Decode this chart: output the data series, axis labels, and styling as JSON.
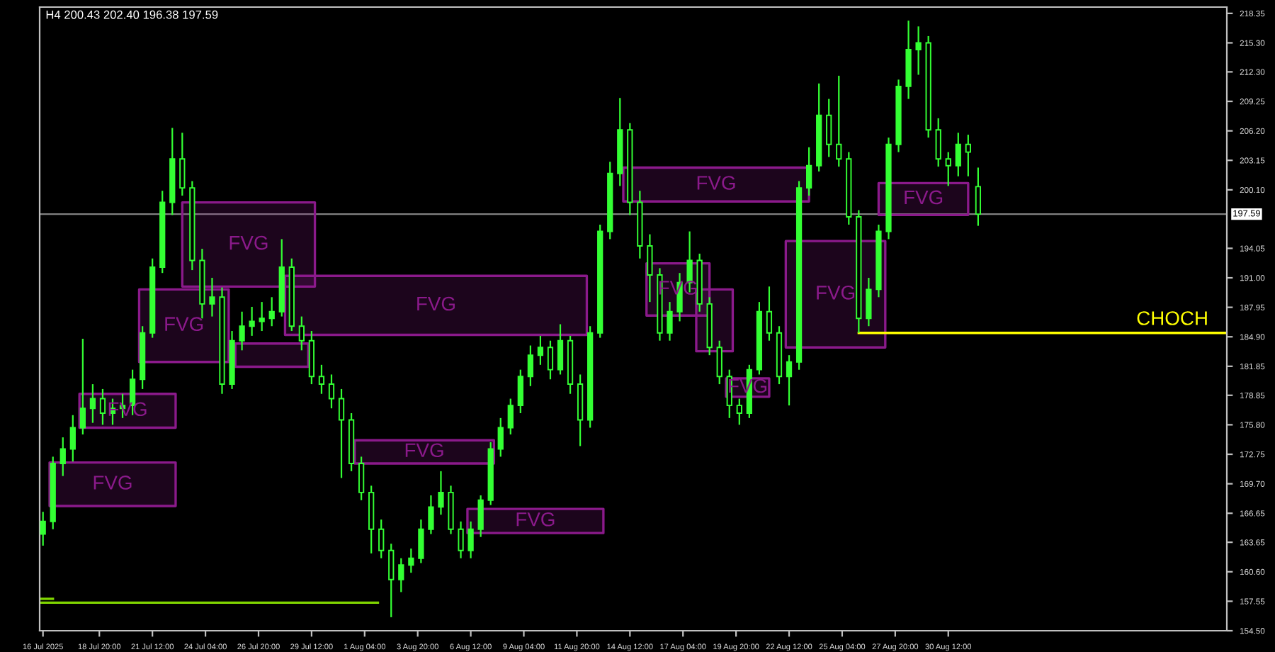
{
  "chart_data": {
    "type": "candlestick",
    "title": "H4 200.43 202.40 196.38 197.59",
    "xlim": [
      "2025-07-15T20:00",
      "2025-09-13T12:00"
    ],
    "xticks": [
      {
        "value": "2025-07-16T00:00",
        "label": "16 Jul 2025"
      },
      {
        "value": "2025-07-18T20:00",
        "label": "18 Jul 20:00"
      },
      {
        "value": "2025-07-21T12:00",
        "label": "21 Jul 12:00"
      },
      {
        "value": "2025-07-24T04:00",
        "label": "24 Jul 04:00"
      },
      {
        "value": "2025-07-26T20:00",
        "label": "26 Jul 20:00"
      },
      {
        "value": "2025-07-29T12:00",
        "label": "29 Jul 12:00"
      },
      {
        "value": "2025-08-01T04:00",
        "label": "1 Aug 04:00"
      },
      {
        "value": "2025-08-03T20:00",
        "label": "3 Aug 20:00"
      },
      {
        "value": "2025-08-06T12:00",
        "label": "6 Aug 12:00"
      },
      {
        "value": "2025-08-09T04:00",
        "label": "9 Aug 04:00"
      },
      {
        "value": "2025-08-11T20:00",
        "label": "11 Aug 20:00"
      },
      {
        "value": "2025-08-14T12:00",
        "label": "14 Aug 12:00"
      },
      {
        "value": "2025-08-17T04:00",
        "label": "17 Aug 04:00"
      },
      {
        "value": "2025-08-19T20:00",
        "label": "19 Aug 20:00"
      },
      {
        "value": "2025-08-22T12:00",
        "label": "22 Aug 12:00"
      },
      {
        "value": "2025-08-25T04:00",
        "label": "25 Aug 04:00"
      },
      {
        "value": "2025-08-27T20:00",
        "label": "27 Aug 20:00"
      },
      {
        "value": "2025-08-30T12:00",
        "label": "30 Aug 12:00"
      }
    ],
    "ylim": [
      154.5,
      219.0
    ],
    "yticks": [
      {
        "value": 154.5,
        "label": "154.50"
      },
      157.55,
      {
        "value": 160.6,
        "label": "160.60"
      },
      163.65,
      166.65,
      {
        "value": 169.7,
        "label": "169.70"
      },
      172.75,
      {
        "value": 175.8,
        "label": "175.80"
      },
      178.85,
      181.85,
      {
        "value": 184.9,
        "label": "184.90"
      },
      187.95,
      {
        "value": 191.0,
        "label": "191.00"
      },
      194.05,
      {
        "value": 200.1,
        "label": "200.10"
      },
      203.15,
      {
        "value": 206.2,
        "label": "206.20"
      },
      209.25,
      {
        "value": 212.3,
        "label": "212.30"
      },
      {
        "value": 215.3,
        "label": "215.30"
      },
      218.35
    ],
    "grid": false,
    "ref_lines": [
      {
        "axis": "y",
        "value": 197.59,
        "label": "197.59",
        "color": "#808080"
      }
    ],
    "series": [
      {
        "type": "candlestick",
        "color": "#33ff33",
        "x": [
          "2025-07-16T00:00",
          "2025-07-16T12:00",
          "2025-07-17T00:00",
          "2025-07-17T12:00",
          "2025-07-18T00:00",
          "2025-07-18T12:00",
          "2025-07-19T00:00",
          "2025-07-19T12:00",
          "2025-07-20T00:00",
          "2025-07-20T12:00",
          "2025-07-21T00:00",
          "2025-07-21T12:00",
          "2025-07-22T00:00",
          "2025-07-22T12:00",
          "2025-07-23T00:00",
          "2025-07-23T12:00",
          "2025-07-24T00:00",
          "2025-07-24T12:00",
          "2025-07-25T00:00",
          "2025-07-25T12:00",
          "2025-07-26T00:00",
          "2025-07-26T12:00",
          "2025-07-27T00:00",
          "2025-07-27T12:00",
          "2025-07-28T00:00",
          "2025-07-28T12:00",
          "2025-07-29T00:00",
          "2025-07-29T12:00",
          "2025-07-30T00:00",
          "2025-07-30T12:00",
          "2025-07-31T00:00",
          "2025-07-31T12:00",
          "2025-08-01T00:00",
          "2025-08-01T12:00",
          "2025-08-02T00:00",
          "2025-08-02T12:00",
          "2025-08-03T00:00",
          "2025-08-03T12:00",
          "2025-08-04T00:00",
          "2025-08-04T12:00",
          "2025-08-05T00:00",
          "2025-08-05T12:00",
          "2025-08-06T00:00",
          "2025-08-06T12:00",
          "2025-08-07T00:00",
          "2025-08-07T12:00",
          "2025-08-08T00:00",
          "2025-08-08T12:00",
          "2025-08-09T00:00",
          "2025-08-09T12:00",
          "2025-08-10T00:00",
          "2025-08-10T12:00",
          "2025-08-11T00:00",
          "2025-08-11T12:00",
          "2025-08-12T00:00",
          "2025-08-12T12:00",
          "2025-08-13T00:00",
          "2025-08-13T12:00",
          "2025-08-14T00:00",
          "2025-08-14T12:00",
          "2025-08-15T00:00",
          "2025-08-15T12:00",
          "2025-08-16T00:00",
          "2025-08-16T12:00",
          "2025-08-17T00:00",
          "2025-08-17T12:00",
          "2025-08-18T00:00",
          "2025-08-18T12:00",
          "2025-08-19T00:00",
          "2025-08-19T12:00",
          "2025-08-20T00:00",
          "2025-08-20T12:00",
          "2025-08-21T00:00",
          "2025-08-21T12:00",
          "2025-08-22T00:00",
          "2025-08-22T12:00",
          "2025-08-23T00:00",
          "2025-08-23T12:00",
          "2025-08-24T00:00",
          "2025-08-24T12:00",
          "2025-08-25T00:00",
          "2025-08-25T12:00",
          "2025-08-26T00:00",
          "2025-08-26T12:00",
          "2025-08-27T00:00",
          "2025-08-27T12:00",
          "2025-08-28T00:00",
          "2025-08-28T12:00",
          "2025-08-29T00:00",
          "2025-08-29T12:00",
          "2025-08-30T00:00",
          "2025-08-30T12:00",
          "2025-08-31T00:00",
          "2025-08-31T12:00",
          "2025-09-01T00:00"
        ],
        "ohlc": [
          [
            164.5,
            166.8,
            163.3,
            165.8
          ],
          [
            165.8,
            172.5,
            165.0,
            171.8
          ],
          [
            171.8,
            174.5,
            170.5,
            173.3
          ],
          [
            173.3,
            176.8,
            172.0,
            175.5
          ],
          [
            175.5,
            184.7,
            174.8,
            177.5
          ],
          [
            177.5,
            180.0,
            176.0,
            178.5
          ],
          [
            178.5,
            179.5,
            175.8,
            177.0
          ],
          [
            177.0,
            178.5,
            175.8,
            177.5
          ],
          [
            177.5,
            179.0,
            176.5,
            177.8
          ],
          [
            177.8,
            181.5,
            176.8,
            180.5
          ],
          [
            180.5,
            186.0,
            179.5,
            185.3
          ],
          [
            185.3,
            193.0,
            184.8,
            192.1
          ],
          [
            192.1,
            200.0,
            191.5,
            198.8
          ],
          [
            198.8,
            206.5,
            197.5,
            203.3
          ],
          [
            203.3,
            206.0,
            199.5,
            200.3
          ],
          [
            200.3,
            201.0,
            191.8,
            192.8
          ],
          [
            192.8,
            194.0,
            186.8,
            188.3
          ],
          [
            188.3,
            191.0,
            187.0,
            189.0
          ],
          [
            189.0,
            190.0,
            179.0,
            180.0
          ],
          [
            180.0,
            185.5,
            179.5,
            184.5
          ],
          [
            184.5,
            187.5,
            183.5,
            186.0
          ],
          [
            186.0,
            188.0,
            185.0,
            186.5
          ],
          [
            186.5,
            188.5,
            185.5,
            186.8
          ],
          [
            186.8,
            189.0,
            186.0,
            187.5
          ],
          [
            187.5,
            195.0,
            187.0,
            192.1
          ],
          [
            192.1,
            193.0,
            185.5,
            186.0
          ],
          [
            186.0,
            187.0,
            183.5,
            184.5
          ],
          [
            184.5,
            185.5,
            180.0,
            180.8
          ],
          [
            180.8,
            182.0,
            179.0,
            180.0
          ],
          [
            180.0,
            181.0,
            177.5,
            178.5
          ],
          [
            178.5,
            179.5,
            170.3,
            176.3
          ],
          [
            176.3,
            177.0,
            171.0,
            171.8
          ],
          [
            171.8,
            172.5,
            168.0,
            168.8
          ],
          [
            168.8,
            169.5,
            162.5,
            165.0
          ],
          [
            165.0,
            166.0,
            162.0,
            162.8
          ],
          [
            162.8,
            163.5,
            155.9,
            159.8
          ],
          [
            159.8,
            162.0,
            158.5,
            161.3
          ],
          [
            161.3,
            163.0,
            160.5,
            162.0
          ],
          [
            162.0,
            166.0,
            161.5,
            165.0
          ],
          [
            165.0,
            168.5,
            164.5,
            167.3
          ],
          [
            167.3,
            171.0,
            166.5,
            168.8
          ],
          [
            168.8,
            169.5,
            164.5,
            165.0
          ],
          [
            165.0,
            165.8,
            162.0,
            162.8
          ],
          [
            162.8,
            165.8,
            162.0,
            165.0
          ],
          [
            165.0,
            168.5,
            164.2,
            168.0
          ],
          [
            168.0,
            174.0,
            167.5,
            173.3
          ],
          [
            173.3,
            176.5,
            172.5,
            175.5
          ],
          [
            175.5,
            178.5,
            174.8,
            177.8
          ],
          [
            177.8,
            181.5,
            177.0,
            180.8
          ],
          [
            180.8,
            184.0,
            179.8,
            183.0
          ],
          [
            183.0,
            185.0,
            182.0,
            183.8
          ],
          [
            183.8,
            184.5,
            180.5,
            181.5
          ],
          [
            181.5,
            186.2,
            181.0,
            184.5
          ],
          [
            184.5,
            185.0,
            179.0,
            180.0
          ],
          [
            180.0,
            181.0,
            173.6,
            176.3
          ],
          [
            176.3,
            186.0,
            175.5,
            185.3
          ],
          [
            185.3,
            196.5,
            184.8,
            195.8
          ],
          [
            195.8,
            203.0,
            195.0,
            201.8
          ],
          [
            201.8,
            209.6,
            200.5,
            206.3
          ],
          [
            206.3,
            207.0,
            197.5,
            198.8
          ],
          [
            198.8,
            200.0,
            193.0,
            194.3
          ],
          [
            194.3,
            195.5,
            188.5,
            191.3
          ],
          [
            191.3,
            192.0,
            184.5,
            185.3
          ],
          [
            185.3,
            188.5,
            184.5,
            187.5
          ],
          [
            187.5,
            191.5,
            186.5,
            190.5
          ],
          [
            190.5,
            195.8,
            189.5,
            192.8
          ],
          [
            192.8,
            193.5,
            187.5,
            188.3
          ],
          [
            188.3,
            189.0,
            183.0,
            183.8
          ],
          [
            183.8,
            184.5,
            180.0,
            180.8
          ],
          [
            180.8,
            181.5,
            176.5,
            177.8
          ],
          [
            177.8,
            178.5,
            175.8,
            177.0
          ],
          [
            177.0,
            182.0,
            176.5,
            181.5
          ],
          [
            181.5,
            188.5,
            181.0,
            187.5
          ],
          [
            187.5,
            190.1,
            184.5,
            185.3
          ],
          [
            185.3,
            186.0,
            180.0,
            180.8
          ],
          [
            180.8,
            183.0,
            177.8,
            182.3
          ],
          [
            182.3,
            201.0,
            181.5,
            200.3
          ],
          [
            200.3,
            204.5,
            199.5,
            202.6
          ],
          [
            202.6,
            211.1,
            202.0,
            207.8
          ],
          [
            207.8,
            209.5,
            203.5,
            204.8
          ],
          [
            204.8,
            211.9,
            202.5,
            203.3
          ],
          [
            203.3,
            204.0,
            196.5,
            197.3
          ],
          [
            197.3,
            198.0,
            185.3,
            186.8
          ],
          [
            186.8,
            191.0,
            186.0,
            189.8
          ],
          [
            189.8,
            196.5,
            189.0,
            195.8
          ],
          [
            195.8,
            205.5,
            195.0,
            204.8
          ],
          [
            204.8,
            211.5,
            204.0,
            210.8
          ],
          [
            210.8,
            217.6,
            209.5,
            214.6
          ],
          [
            214.6,
            217.0,
            212.0,
            215.3
          ],
          [
            215.3,
            216.0,
            205.5,
            206.3
          ],
          [
            206.3,
            207.5,
            202.5,
            203.3
          ],
          [
            203.3,
            204.0,
            200.5,
            202.6
          ],
          [
            202.6,
            206.0,
            201.5,
            204.8
          ],
          [
            204.8,
            205.8,
            201.5,
            204.0
          ],
          [
            200.43,
            202.4,
            196.38,
            197.59
          ]
        ]
      },
      {
        "type": "line",
        "name": "FVG",
        "color": "#8b1a8b",
        "x": [
          "2025-07-16T08:00",
          "2025-07-22T16:00"
        ],
        "values": [
          null,
          null
        ],
        "lower": [
          167.4,
          167.4
        ],
        "upper": [
          171.9,
          171.9
        ]
      },
      {
        "type": "line",
        "name": "FVG",
        "color": "#8b1a8b",
        "x": [
          "2025-07-17T20:00",
          "2025-07-22T16:00"
        ],
        "values": [
          null,
          null
        ],
        "lower": [
          175.5,
          175.5
        ],
        "upper": [
          179.0,
          179.0
        ]
      },
      {
        "type": "line",
        "name": "FVG",
        "color": "#8b1a8b",
        "x": [
          "2025-07-20T20:00",
          "2025-07-25T08:00"
        ],
        "values": [
          null,
          null
        ],
        "lower": [
          182.3,
          182.3
        ],
        "upper": [
          189.8,
          189.8
        ]
      },
      {
        "type": "line",
        "color": "#8b1a8b",
        "x": [
          "2025-07-25T16:00",
          "2025-07-29T08:00"
        ],
        "values": [
          null,
          null
        ],
        "lower": [
          181.8,
          181.8
        ],
        "upper": [
          184.2,
          184.2
        ]
      },
      {
        "type": "line",
        "name": "FVG",
        "color": "#8b1a8b",
        "x": [
          "2025-07-23T00:00",
          "2025-07-29T16:00"
        ],
        "values": [
          null,
          null
        ],
        "lower": [
          190.1,
          190.1
        ],
        "upper": [
          198.8,
          198.8
        ]
      },
      {
        "type": "line",
        "name": "FVG",
        "color": "#8b1a8b",
        "x": [
          "2025-07-28T04:00",
          "2025-08-12T08:00"
        ],
        "values": [
          null,
          null
        ],
        "lower": [
          185.1,
          185.1
        ],
        "upper": [
          191.2,
          191.2
        ]
      },
      {
        "type": "line",
        "name": "FVG",
        "color": "#8b1a8b",
        "x": [
          "2025-07-31T16:00",
          "2025-08-07T16:00"
        ],
        "values": [
          null,
          null
        ],
        "lower": [
          171.8,
          171.8
        ],
        "upper": [
          174.2,
          174.2
        ]
      },
      {
        "type": "line",
        "name": "FVG",
        "color": "#8b1a8b",
        "x": [
          "2025-08-06T08:00",
          "2025-08-13T04:00"
        ],
        "values": [
          null,
          null
        ],
        "lower": [
          164.6,
          164.6
        ],
        "upper": [
          167.1,
          167.1
        ]
      },
      {
        "type": "line",
        "name": "FVG",
        "color": "#8b1a8b",
        "x": [
          "2025-08-14T04:00",
          "2025-08-23T12:00"
        ],
        "values": [
          null,
          null
        ],
        "lower": [
          198.9,
          198.9
        ],
        "upper": [
          202.4,
          202.4
        ]
      },
      {
        "type": "line",
        "name": "FVG",
        "color": "#8b1a8b",
        "x": [
          "2025-08-15T08:00",
          "2025-08-18T12:00"
        ],
        "values": [
          null,
          null
        ],
        "lower": [
          187.1,
          187.1
        ],
        "upper": [
          192.5,
          192.5
        ]
      },
      {
        "type": "line",
        "color": "#8b1a8b",
        "x": [
          "2025-08-17T20:00",
          "2025-08-19T16:00"
        ],
        "values": [
          null,
          null
        ],
        "lower": [
          183.4,
          183.4
        ],
        "upper": [
          189.8,
          189.8
        ]
      },
      {
        "type": "line",
        "name": "FVG",
        "color": "#8b1a8b",
        "x": [
          "2025-08-19T08:00",
          "2025-08-21T12:00"
        ],
        "values": [
          null,
          null
        ],
        "lower": [
          178.7,
          178.7
        ],
        "upper": [
          180.6,
          180.6
        ]
      },
      {
        "type": "line",
        "name": "FVG",
        "color": "#8b1a8b",
        "x": [
          "2025-08-22T08:00",
          "2025-08-27T08:00"
        ],
        "values": [
          null,
          null
        ],
        "lower": [
          183.8,
          183.8
        ],
        "upper": [
          194.8,
          194.8
        ]
      },
      {
        "type": "line",
        "name": "FVG",
        "color": "#8b1a8b",
        "x": [
          "2025-08-27T00:00",
          "2025-08-31T12:00"
        ],
        "values": [
          null,
          null
        ],
        "lower": [
          197.5,
          197.5
        ],
        "upper": [
          200.8,
          200.8
        ]
      },
      {
        "type": "line",
        "name": "CHOCH",
        "color": "#ffff00",
        "x": [
          "2025-08-26T00:00",
          "2025-09-13T12:00"
        ],
        "values": [
          185.3,
          185.3
        ]
      },
      {
        "type": "line",
        "color": "#7fd400",
        "x": [
          "2025-07-15T20:00",
          "2025-08-01T20:00"
        ],
        "values": [
          157.4,
          157.4
        ]
      },
      {
        "type": "line",
        "color": "#7fd400",
        "x": [
          "2025-07-15T20:00",
          "2025-07-16T12:00"
        ],
        "values": [
          157.8,
          157.8
        ]
      }
    ]
  }
}
